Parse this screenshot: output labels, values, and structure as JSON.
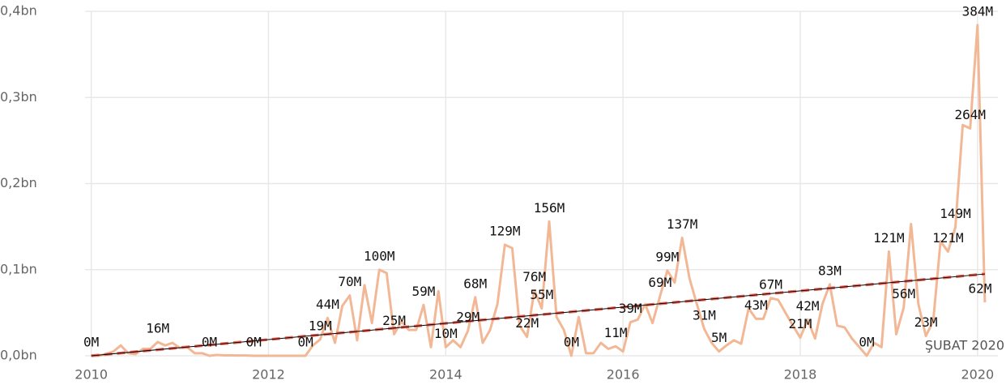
{
  "chart_data": {
    "type": "line",
    "x": [
      2010,
      2010.083,
      2010.167,
      2010.25,
      2010.333,
      2010.417,
      2010.5,
      2010.583,
      2010.667,
      2010.75,
      2010.833,
      2010.917,
      2011,
      2011.083,
      2011.167,
      2011.25,
      2011.333,
      2011.417,
      2011.5,
      2011.583,
      2011.667,
      2011.75,
      2011.833,
      2011.917,
      2012,
      2012.083,
      2012.167,
      2012.25,
      2012.333,
      2012.417,
      2012.5,
      2012.583,
      2012.667,
      2012.75,
      2012.833,
      2012.917,
      2013,
      2013.083,
      2013.167,
      2013.25,
      2013.333,
      2013.417,
      2013.5,
      2013.583,
      2013.667,
      2013.75,
      2013.833,
      2013.917,
      2014,
      2014.083,
      2014.167,
      2014.25,
      2014.333,
      2014.417,
      2014.5,
      2014.583,
      2014.667,
      2014.75,
      2014.833,
      2014.917,
      2015,
      2015.083,
      2015.167,
      2015.25,
      2015.333,
      2015.417,
      2015.5,
      2015.583,
      2015.667,
      2015.75,
      2015.833,
      2015.917,
      2016,
      2016.083,
      2016.167,
      2016.25,
      2016.333,
      2016.417,
      2016.5,
      2016.583,
      2016.667,
      2016.75,
      2016.833,
      2016.917,
      2017,
      2017.083,
      2017.167,
      2017.25,
      2017.333,
      2017.417,
      2017.5,
      2017.583,
      2017.667,
      2017.75,
      2017.833,
      2017.917,
      2018,
      2018.083,
      2018.167,
      2018.25,
      2018.333,
      2018.417,
      2018.5,
      2018.583,
      2018.667,
      2018.75,
      2018.833,
      2018.917,
      2019,
      2019.083,
      2019.167,
      2019.25,
      2019.333,
      2019.417,
      2019.5,
      2019.583,
      2019.667,
      2019.75,
      2019.833,
      2019.917,
      2020,
      2020.083
    ],
    "series": [
      {
        "color": "#f2b896",
        "values": [
          0,
          0,
          0.002,
          0.005,
          0.012,
          0.003,
          0.002,
          0.008,
          0.008,
          0.016,
          0.012,
          0.015,
          0.009,
          0.01,
          0.003,
          0.003,
          0,
          0.001,
          0.0005,
          0.0005,
          0.0003,
          0.0003,
          0,
          0,
          0,
          0,
          0,
          0,
          0,
          0,
          0.012,
          0.019,
          0.044,
          0.015,
          0.058,
          0.07,
          0.018,
          0.082,
          0.038,
          0.1,
          0.096,
          0.025,
          0.04,
          0.03,
          0.03,
          0.059,
          0.01,
          0.075,
          0.01,
          0.018,
          0.01,
          0.029,
          0.068,
          0.015,
          0.03,
          0.06,
          0.129,
          0.125,
          0.035,
          0.022,
          0.076,
          0.055,
          0.156,
          0.045,
          0.03,
          0,
          0.045,
          0.003,
          0.003,
          0.015,
          0.008,
          0.011,
          0.005,
          0.039,
          0.042,
          0.06,
          0.038,
          0.069,
          0.099,
          0.085,
          0.137,
          0.09,
          0.06,
          0.031,
          0.015,
          0.005,
          0.012,
          0.018,
          0.014,
          0.055,
          0.043,
          0.043,
          0.067,
          0.065,
          0.05,
          0.035,
          0.021,
          0.042,
          0.02,
          0.06,
          0.083,
          0.035,
          0.033,
          0.02,
          0.01,
          0,
          0.015,
          0.01,
          0.121,
          0.025,
          0.056,
          0.153,
          0.06,
          0.023,
          0.04,
          0.133,
          0.121,
          0.149,
          0.268,
          0.264,
          0.384,
          0.062
        ],
        "value_labels": [
          "0M",
          null,
          null,
          null,
          null,
          null,
          null,
          null,
          null,
          "16M",
          null,
          null,
          null,
          null,
          null,
          null,
          "0M",
          null,
          null,
          null,
          null,
          null,
          "0M",
          null,
          null,
          null,
          null,
          null,
          null,
          "0M",
          null,
          "19M",
          "44M",
          null,
          null,
          "70M",
          null,
          null,
          null,
          "100M",
          null,
          "25M",
          null,
          null,
          null,
          "59M",
          null,
          null,
          "10M",
          null,
          null,
          "29M",
          "68M",
          null,
          null,
          null,
          "129M",
          null,
          null,
          "22M",
          "76M",
          "55M",
          "156M",
          null,
          null,
          "0M",
          null,
          null,
          null,
          null,
          null,
          "11M",
          null,
          "39M",
          null,
          null,
          null,
          "69M",
          "99M",
          null,
          "137M",
          null,
          null,
          "31M",
          null,
          "5M",
          null,
          null,
          null,
          null,
          "43M",
          null,
          "67M",
          null,
          null,
          null,
          "21M",
          "42M",
          null,
          null,
          "83M",
          null,
          null,
          null,
          null,
          "0M",
          null,
          null,
          "121M",
          null,
          "56M",
          null,
          null,
          "23M",
          null,
          null,
          "121M",
          "149M",
          null,
          "264M",
          "384M",
          "62M"
        ]
      }
    ],
    "trend": {
      "x": [
        2010,
        2020.083
      ],
      "values": [
        0,
        0.095
      ],
      "colors": [
        "#000000",
        "#f06a5e"
      ]
    },
    "annotation": "ŞUBAT 2020",
    "xlim": [
      2009.93,
      2020.23
    ],
    "xticks": [
      2010,
      2012,
      2014,
      2016,
      2018,
      2020
    ],
    "ylim": [
      0,
      0.4
    ],
    "yticks": [
      {
        "value": 0,
        "label": "0,0bn"
      },
      {
        "value": 0.1,
        "label": "0,1bn"
      },
      {
        "value": 0.2,
        "label": "0,2bn"
      },
      {
        "value": 0.3,
        "label": "0,3bn"
      },
      {
        "value": 0.4,
        "label": "0,4bn"
      }
    ],
    "grid": true
  }
}
